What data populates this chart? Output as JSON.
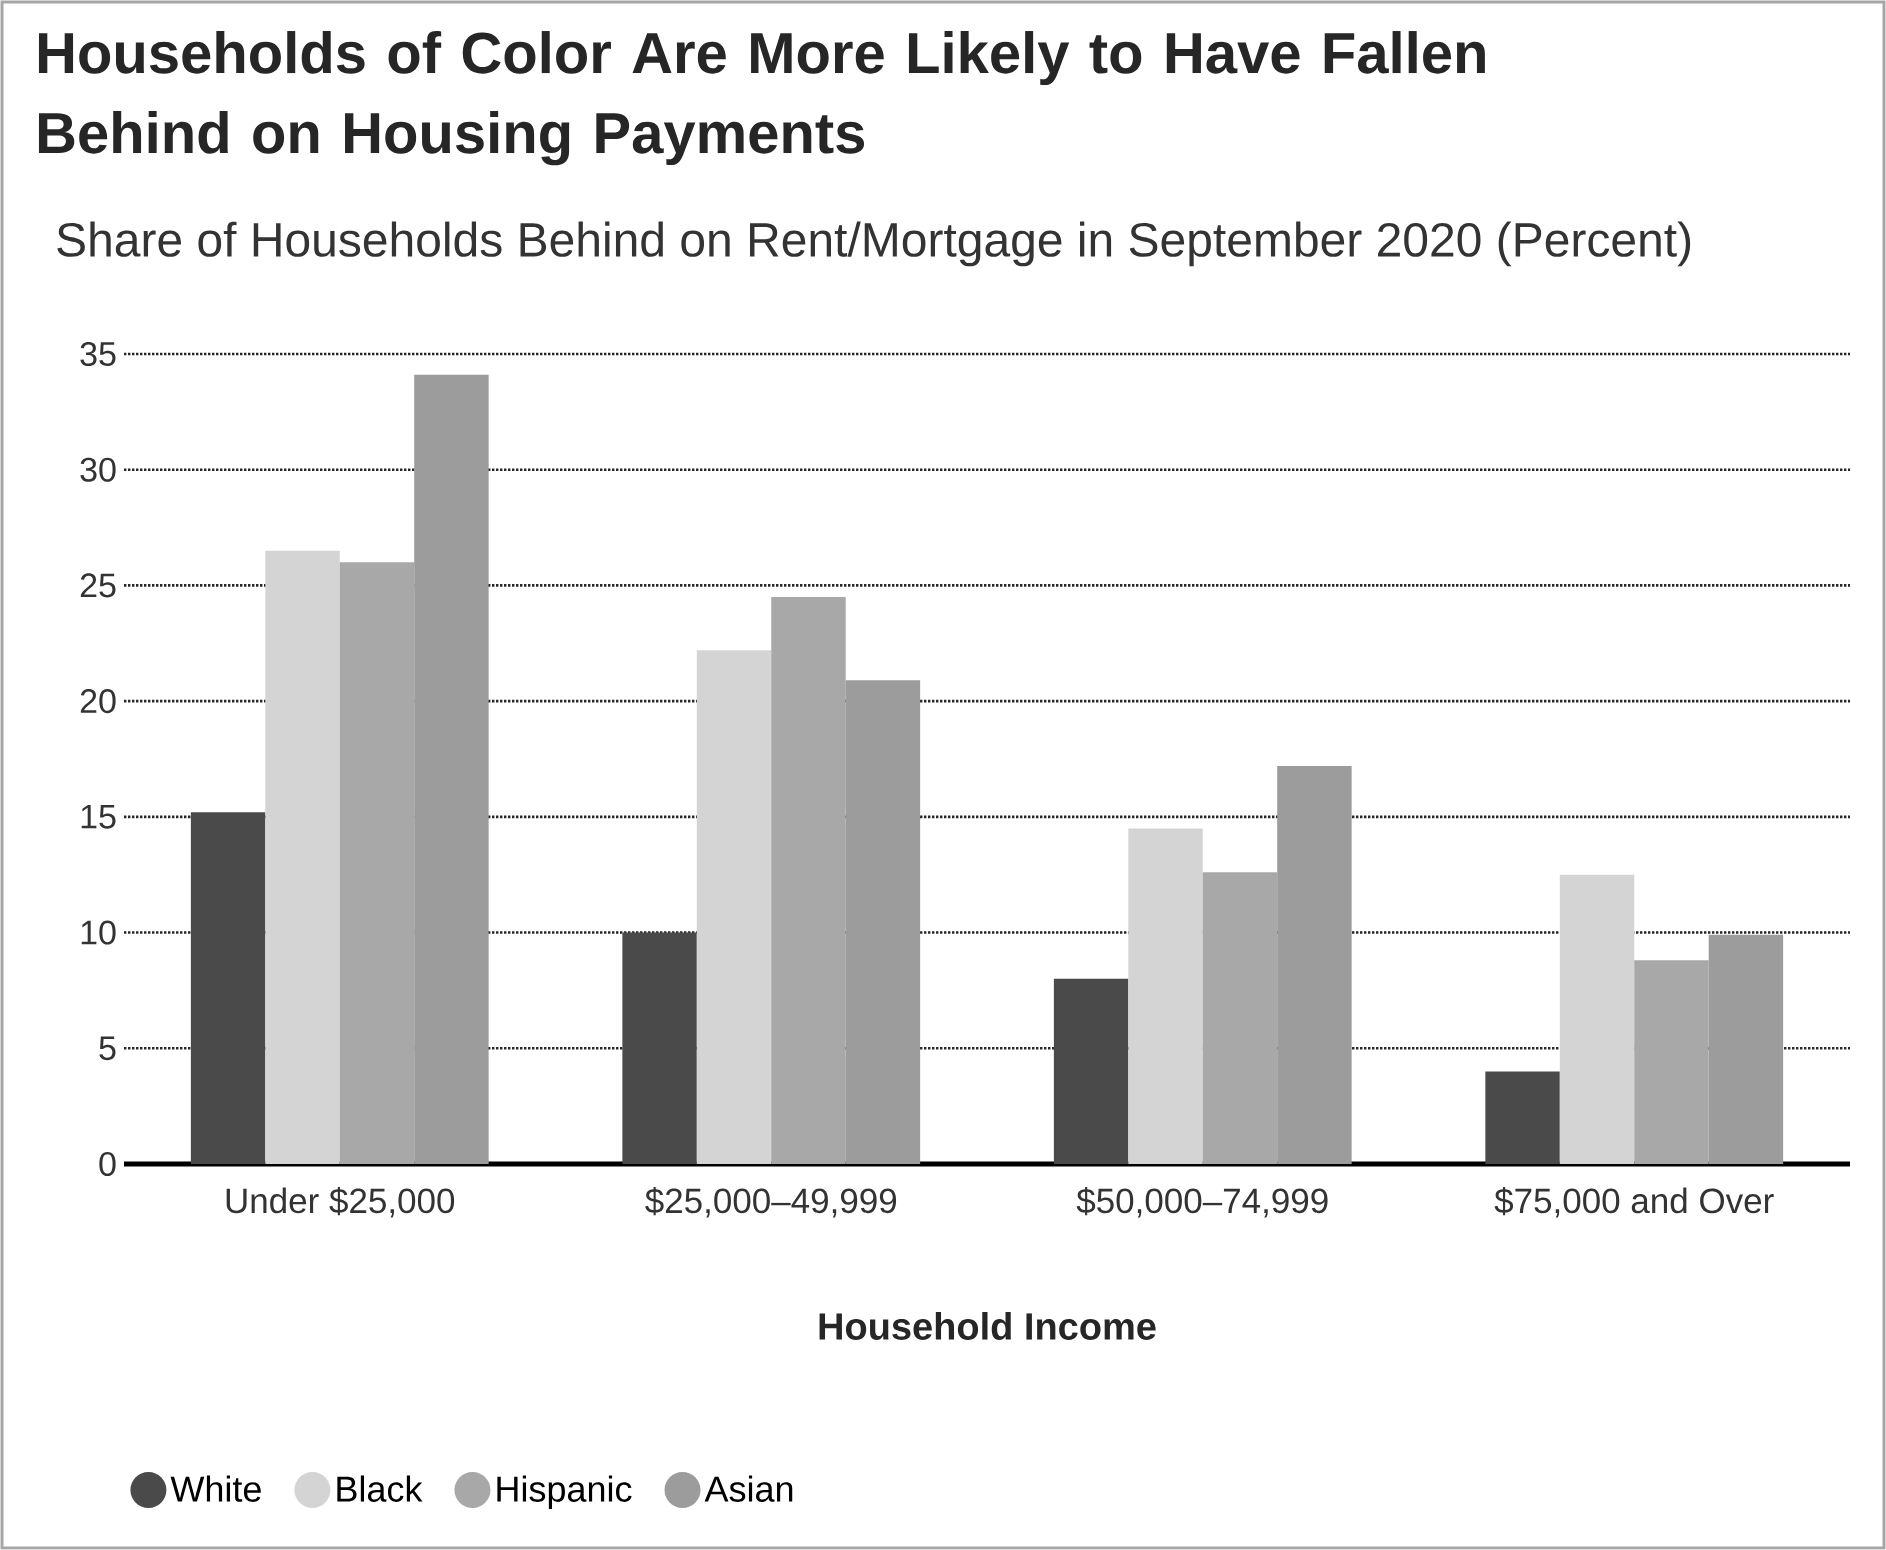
{
  "chart_data": {
    "type": "bar",
    "title": "Households of Color Are More Likely to Have Fallen Behind on Housing Payments",
    "subtitle": "Share of Households Behind on Rent/Mortgage in September 2020 (Percent)",
    "xlabel": "Household Income",
    "categories": [
      "Under $25,000",
      "$25,000–49,999",
      "$50,000–74,999",
      "$75,000 and Over"
    ],
    "series": [
      {
        "name": "White",
        "color": "#4a4a4a",
        "values": [
          15.2,
          10.0,
          8.0,
          4.0
        ]
      },
      {
        "name": "Black",
        "color": "#d4d4d4",
        "values": [
          26.5,
          22.2,
          14.5,
          12.5
        ]
      },
      {
        "name": "Hispanic",
        "color": "#a8a8a8",
        "values": [
          26.0,
          24.5,
          12.6,
          8.8
        ]
      },
      {
        "name": "Asian",
        "color": "#9c9c9c",
        "values": [
          34.1,
          20.9,
          17.2,
          9.9
        ]
      }
    ],
    "ylim": [
      0,
      35
    ],
    "yticks": [
      0,
      5,
      10,
      15,
      20,
      25,
      30,
      35
    ],
    "grid": "y",
    "legend": "bottom left"
  }
}
